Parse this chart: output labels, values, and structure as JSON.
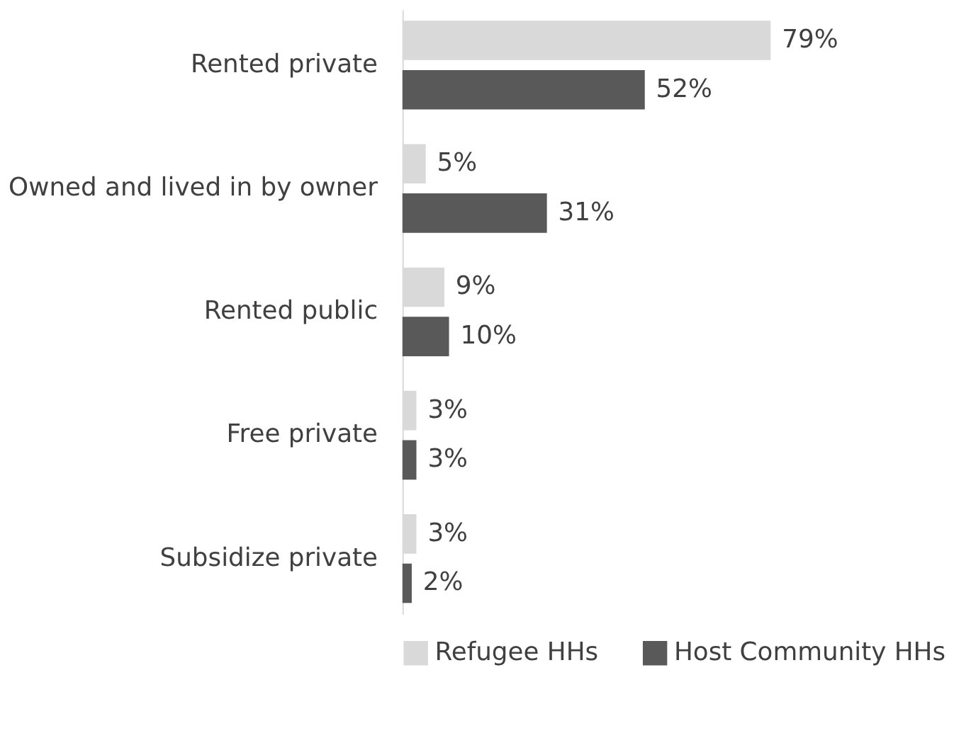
{
  "chart_data": {
    "type": "bar",
    "orientation": "horizontal",
    "categories": [
      "Rented private",
      "Owned and lived in by owner",
      "Rented public",
      "Free private",
      "Subsidize private"
    ],
    "series": [
      {
        "name": "Refugee HHs",
        "color": "#d9d9d9",
        "values": [
          79,
          5,
          9,
          3,
          3
        ],
        "value_labels": [
          "79%",
          "5%",
          "9%",
          "3%",
          "3%"
        ]
      },
      {
        "name": "Host Community HHs",
        "color": "#595959",
        "values": [
          52,
          31,
          10,
          3,
          2
        ],
        "value_labels": [
          "52%",
          "31%",
          "10%",
          "3%",
          "2%"
        ]
      }
    ],
    "legend": "bottom"
  }
}
